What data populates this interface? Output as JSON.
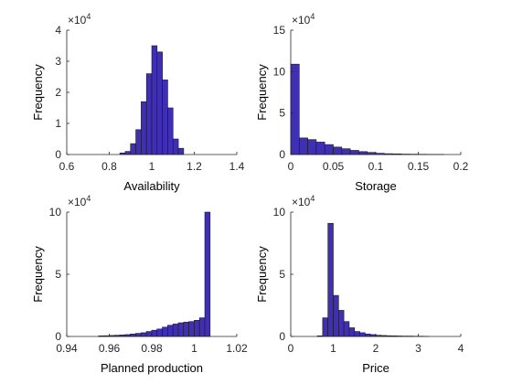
{
  "chart_data": [
    {
      "type": "bar",
      "xlabel": "Availability",
      "ylabel": "Frequency",
      "y_multiplier": "×10",
      "y_multiplier_exp": "4",
      "xlim": [
        0.6,
        1.4
      ],
      "ylim": [
        0,
        4
      ],
      "xticks": [
        "0.6",
        "0.8",
        "1",
        "1.2",
        "1.4"
      ],
      "yticks": [
        "0",
        "1",
        "2",
        "3",
        "4"
      ],
      "bar_width": 0.025,
      "bin_centers": [
        0.8625,
        0.8875,
        0.9125,
        0.9375,
        0.9625,
        0.9875,
        1.0125,
        1.0375,
        1.0625,
        1.0875,
        1.1125,
        1.1375
      ],
      "values": [
        0.05,
        0.1,
        0.35,
        0.8,
        1.7,
        2.6,
        3.5,
        3.3,
        2.4,
        1.5,
        0.5,
        0.2
      ]
    },
    {
      "type": "bar",
      "xlabel": "Storage",
      "ylabel": "Frequency",
      "y_multiplier": "×10",
      "y_multiplier_exp": "4",
      "xlim": [
        0,
        0.2
      ],
      "ylim": [
        0,
        15
      ],
      "xticks": [
        "0",
        "0.05",
        "0.1",
        "0.15",
        "0.2"
      ],
      "yticks": [
        "0",
        "5",
        "10",
        "15"
      ],
      "bar_width": 0.01,
      "bin_centers": [
        0.005,
        0.015,
        0.025,
        0.035,
        0.045,
        0.055,
        0.065,
        0.075,
        0.085,
        0.095,
        0.105,
        0.115,
        0.125,
        0.135,
        0.145,
        0.155,
        0.165,
        0.175
      ],
      "values": [
        10.9,
        2.0,
        1.8,
        1.5,
        1.2,
        0.9,
        0.7,
        0.5,
        0.35,
        0.25,
        0.15,
        0.1,
        0.08,
        0.05,
        0.04,
        0.03,
        0.02,
        0.01
      ]
    },
    {
      "type": "bar",
      "xlabel": "Planned production",
      "ylabel": "Frequency",
      "y_multiplier": "×10",
      "y_multiplier_exp": "4",
      "xlim": [
        0.94,
        1.02
      ],
      "ylim": [
        0,
        10
      ],
      "xticks": [
        "0.94",
        "0.96",
        "0.98",
        "1",
        "1.02"
      ],
      "yticks": [
        "0",
        "5",
        "10"
      ],
      "bar_width": 0.0025,
      "bin_centers": [
        0.9562,
        0.9587,
        0.9612,
        0.9637,
        0.9662,
        0.9687,
        0.9712,
        0.9737,
        0.9762,
        0.9787,
        0.9812,
        0.9837,
        0.9862,
        0.9887,
        0.9912,
        0.9937,
        0.9962,
        0.9987,
        1.0012,
        1.0037,
        1.0062
      ],
      "values": [
        0.05,
        0.06,
        0.08,
        0.1,
        0.12,
        0.15,
        0.2,
        0.25,
        0.3,
        0.4,
        0.5,
        0.6,
        0.75,
        0.9,
        1.0,
        1.1,
        1.15,
        1.2,
        1.3,
        1.5,
        10.0
      ]
    },
    {
      "type": "bar",
      "xlabel": "Price",
      "ylabel": "Frequency",
      "y_multiplier": "×10",
      "y_multiplier_exp": "4",
      "xlim": [
        0,
        4
      ],
      "ylim": [
        0,
        10
      ],
      "xticks": [
        "0",
        "1",
        "2",
        "3",
        "4"
      ],
      "yticks": [
        "0",
        "5",
        "10"
      ],
      "bar_width": 0.125,
      "bin_centers": [
        0.6875,
        0.8125,
        0.9375,
        1.0625,
        1.1875,
        1.3125,
        1.4375,
        1.5625,
        1.6875,
        1.8125,
        1.9375,
        2.0625,
        2.1875,
        2.3125,
        2.4375,
        2.5625,
        2.6875,
        2.8125,
        2.9375,
        3.0625,
        3.1875
      ],
      "values": [
        0.05,
        1.5,
        9.1,
        3.3,
        2.1,
        1.2,
        0.7,
        0.4,
        0.3,
        0.2,
        0.15,
        0.1,
        0.08,
        0.06,
        0.05,
        0.04,
        0.03,
        0.03,
        0.02,
        0.02,
        0.01
      ]
    }
  ],
  "colors": {
    "bar_fill": "#3f2fb5",
    "bar_edge": "#1a1a1a",
    "axis": "#262626"
  }
}
